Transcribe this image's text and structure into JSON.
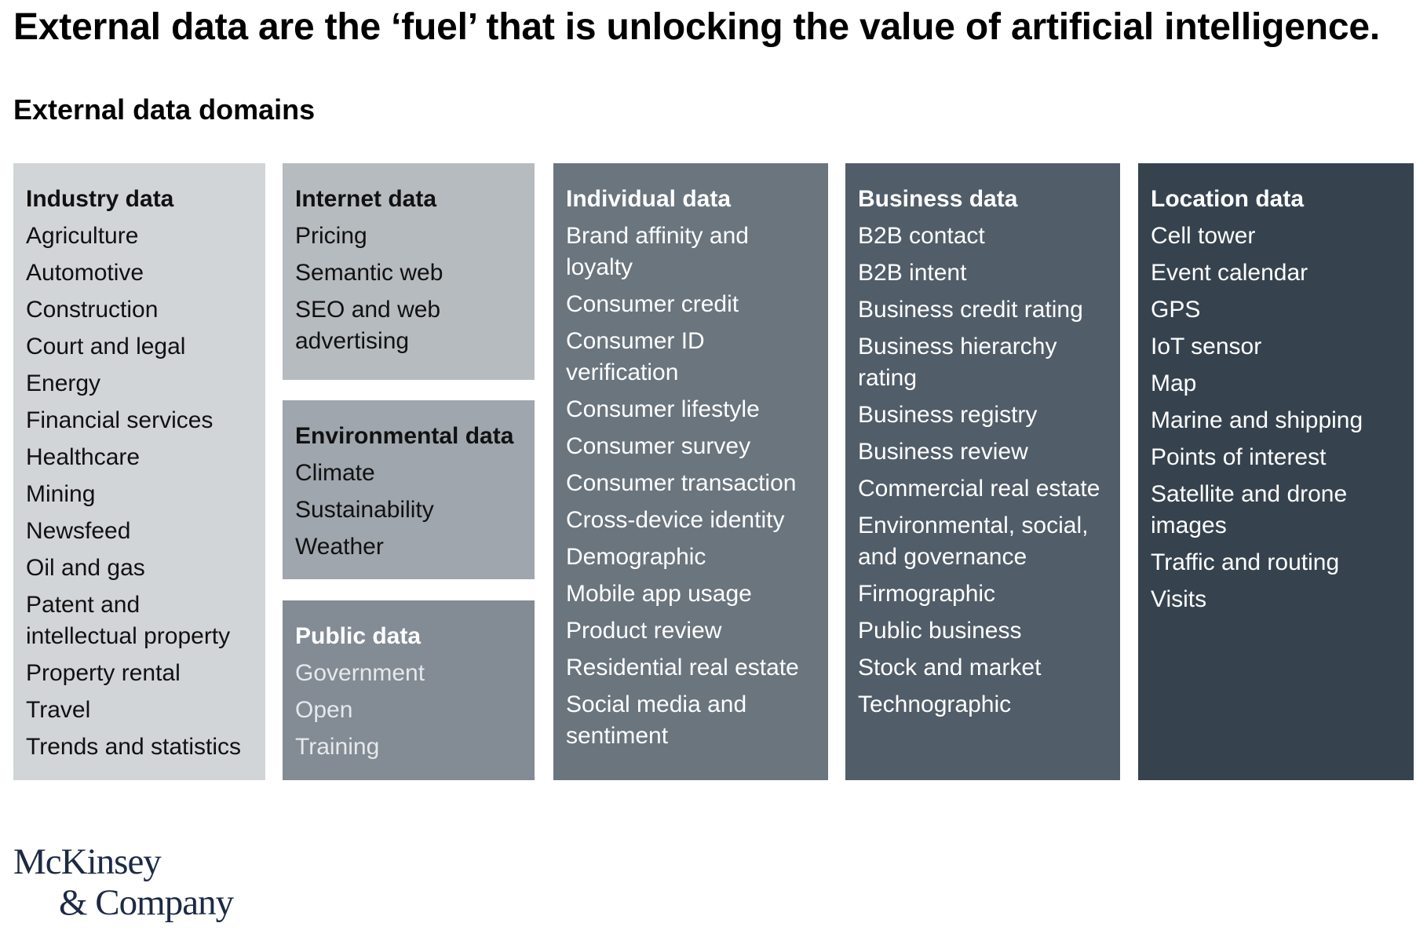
{
  "headline": "External data are the ‘fuel’ that is unlocking the value of artificial intelligence.",
  "subhead": "External data domains",
  "domains": {
    "industry": {
      "title": "Industry data",
      "color": "#d2d5d8",
      "items": [
        "Agriculture",
        "Automotive",
        "Construction",
        "Court and legal",
        "Energy",
        "Financial services",
        "Healthcare",
        "Mining",
        "Newsfeed",
        "Oil and gas",
        "Patent and intellectual property",
        "Property rental",
        "Travel",
        "Trends and statistics"
      ]
    },
    "internet": {
      "title": "Internet data",
      "color": "#b6bbc0",
      "items": [
        "Pricing",
        "Semantic web",
        "SEO and web advertising"
      ]
    },
    "environmental": {
      "title": "Environmental data",
      "color": "#9fa6ad",
      "items": [
        "Climate",
        "Sustainability",
        "Weather"
      ]
    },
    "public": {
      "title": "Public data",
      "color": "#838b94",
      "items": [
        "Government",
        "Open",
        "Training"
      ]
    },
    "individual": {
      "title": "Individual data",
      "color": "#6a757e",
      "items": [
        "Brand affinity and loyalty",
        "Consumer credit",
        "Consumer ID verification",
        "Consumer lifestyle",
        "Consumer survey",
        "Consumer transaction",
        "Cross-device identity",
        "Demographic",
        "Mobile app usage",
        "Product review",
        "Residential real estate",
        "Social media and sentiment"
      ]
    },
    "business": {
      "title": "Business data",
      "color": "#515d68",
      "items": [
        "B2B contact",
        "B2B intent",
        "Business credit rating",
        "Business hierarchy rating",
        "Business registry",
        "Business review",
        "Commercial real estate",
        "Environmental, social, and governance",
        "Firmographic",
        "Public business",
        "Stock and market",
        "Technographic"
      ]
    },
    "location": {
      "title": "Location data",
      "color": "#36434e",
      "items": [
        "Cell tower",
        "Event calendar",
        "GPS",
        "IoT sensor",
        "Map",
        "Marine and shipping",
        "Points of interest",
        "Satellite and drone images",
        "Traffic and routing",
        "Visits"
      ]
    }
  },
  "logo": {
    "line1": "McKinsey",
    "line2": "& Company"
  }
}
